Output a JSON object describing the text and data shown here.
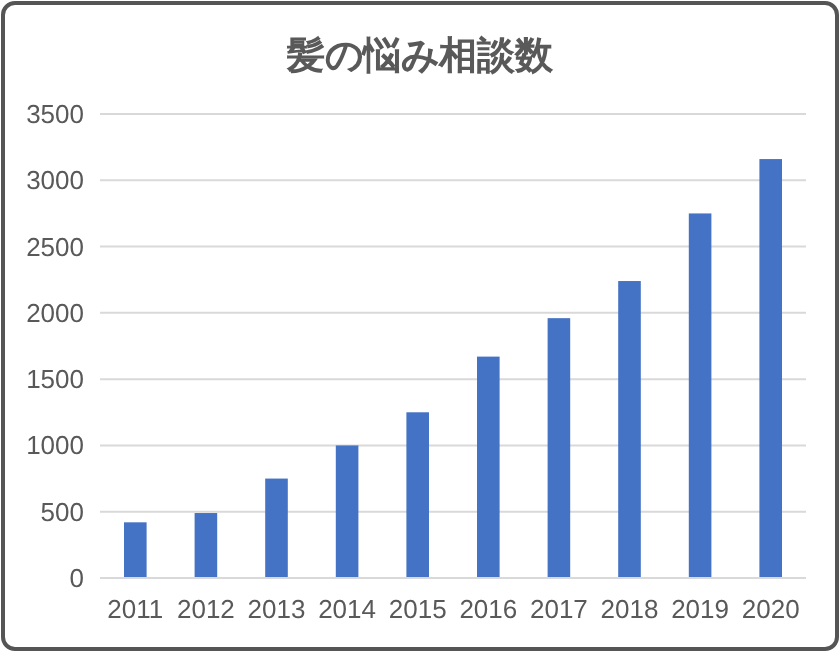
{
  "chart_data": {
    "type": "bar",
    "title": "髪の悩み相談数",
    "categories": [
      "2011",
      "2012",
      "2013",
      "2014",
      "2015",
      "2016",
      "2017",
      "2018",
      "2019",
      "2020"
    ],
    "values": [
      420,
      490,
      750,
      1000,
      1250,
      1670,
      1960,
      2240,
      2750,
      3160
    ],
    "color": "#4472c4",
    "ylim": [
      0,
      3500
    ],
    "yticks": [
      0,
      500,
      1000,
      1500,
      2000,
      2500,
      3000,
      3500
    ],
    "grid": "y"
  }
}
